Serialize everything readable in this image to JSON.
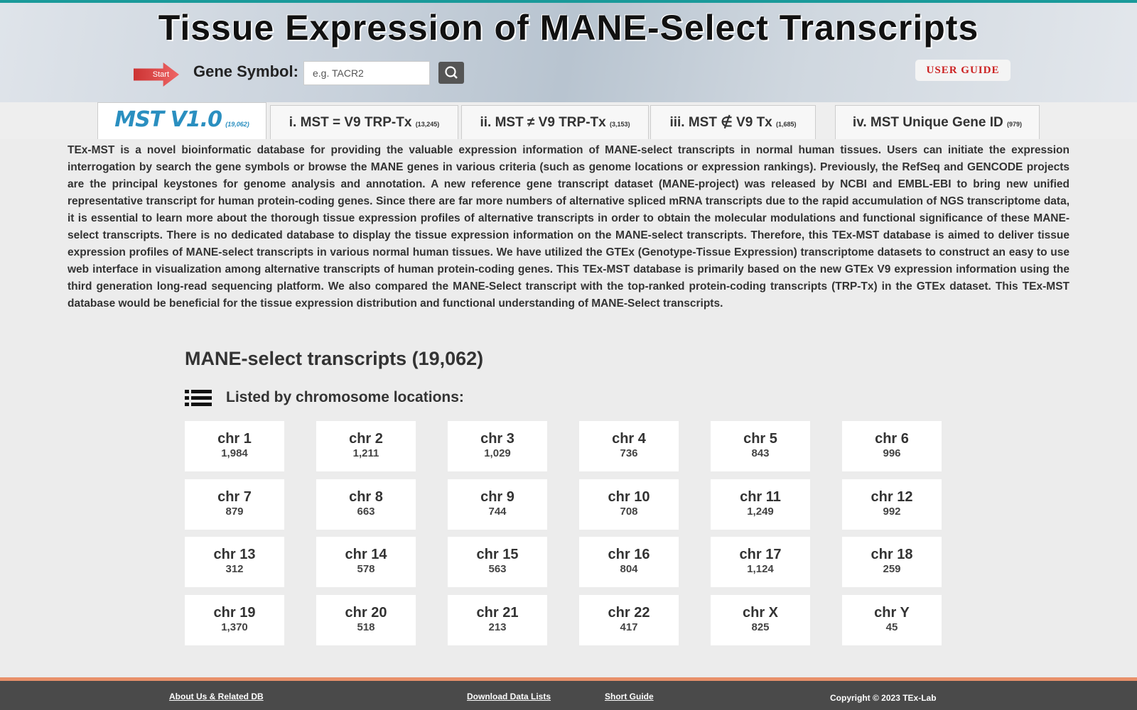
{
  "header": {
    "title": "Tissue Expression of MANE-Select Transcripts",
    "start": "Start",
    "search_label": "Gene Symbol:",
    "search_placeholder": "e.g. TACR2",
    "user_guide": "USER GUIDE"
  },
  "tabs": [
    {
      "label": "MST V1.0",
      "count": "(19,062)"
    },
    {
      "label": "i. MST = V9 TRP-Tx",
      "count": "(13,245)"
    },
    {
      "label": "ii. MST ≠ V9 TRP-Tx",
      "count": "(3,153)"
    },
    {
      "label": "iii. MST ∉ V9 Tx",
      "count": "(1,685)"
    },
    {
      "label": "iv. MST Unique Gene ID",
      "count": "(979)"
    }
  ],
  "intro": "TEx-MST is a novel bioinformatic database for providing the valuable expression information of MANE-select transcripts in normal human tissues. Users can initiate the expression interrogation by search the gene symbols or browse the MANE genes in various criteria (such as genome locations or expression rankings). Previously, the RefSeq and GENCODE projects are the principal keystones for genome analysis and annotation. A new reference gene transcript dataset (MANE-project) was released by NCBI and EMBL-EBI to bring new unified representative transcript for human protein-coding genes. Since there are far more numbers of alternative spliced mRNA transcripts due to the rapid accumulation of NGS transcriptome data, it is essential to learn more about the thorough tissue expression profiles of alternative transcripts in order to obtain the molecular modulations and functional significance of these MANE-select transcripts. There is no dedicated database to display the tissue expression information on the MANE-select transcripts. Therefore, this TEx-MST database is aimed to deliver tissue expression profiles of MANE-select transcripts in various normal human tissues. We have utilized the GTEx (Genotype-Tissue Expression) transcriptome datasets to construct an easy to use web interface in visualization among alternative transcripts of human protein-coding genes. This TEx-MST database is primarily based on the new GTEx V9 expression information using the third generation long-read sequencing platform. We also compared the MANE-Select transcript with the top-ranked protein-coding transcripts (TRP-Tx) in the GTEx dataset. This TEx-MST database would be beneficial for the tissue expression distribution and functional understanding of MANE-Select transcripts.",
  "section": {
    "title": "MANE-select transcripts (19,062)",
    "subtitle": "Listed by chromosome locations:"
  },
  "chromosomes": [
    {
      "name": "chr 1",
      "count": "1,984"
    },
    {
      "name": "chr 2",
      "count": "1,211"
    },
    {
      "name": "chr 3",
      "count": "1,029"
    },
    {
      "name": "chr 4",
      "count": "736"
    },
    {
      "name": "chr 5",
      "count": "843"
    },
    {
      "name": "chr 6",
      "count": "996"
    },
    {
      "name": "chr 7",
      "count": "879"
    },
    {
      "name": "chr 8",
      "count": "663"
    },
    {
      "name": "chr 9",
      "count": "744"
    },
    {
      "name": "chr 10",
      "count": "708"
    },
    {
      "name": "chr 11",
      "count": "1,249"
    },
    {
      "name": "chr 12",
      "count": "992"
    },
    {
      "name": "chr 13",
      "count": "312"
    },
    {
      "name": "chr 14",
      "count": "578"
    },
    {
      "name": "chr 15",
      "count": "563"
    },
    {
      "name": "chr 16",
      "count": "804"
    },
    {
      "name": "chr 17",
      "count": "1,124"
    },
    {
      "name": "chr 18",
      "count": "259"
    },
    {
      "name": "chr 19",
      "count": "1,370"
    },
    {
      "name": "chr 20",
      "count": "518"
    },
    {
      "name": "chr 21",
      "count": "213"
    },
    {
      "name": "chr 22",
      "count": "417"
    },
    {
      "name": "chr X",
      "count": "825"
    },
    {
      "name": "chr Y",
      "count": "45"
    }
  ],
  "footer": {
    "links": [
      "About Us & Related DB",
      "Download Data Lists",
      "Short Guide"
    ],
    "copyright": "Copyright © 2023 TEx-Lab"
  }
}
